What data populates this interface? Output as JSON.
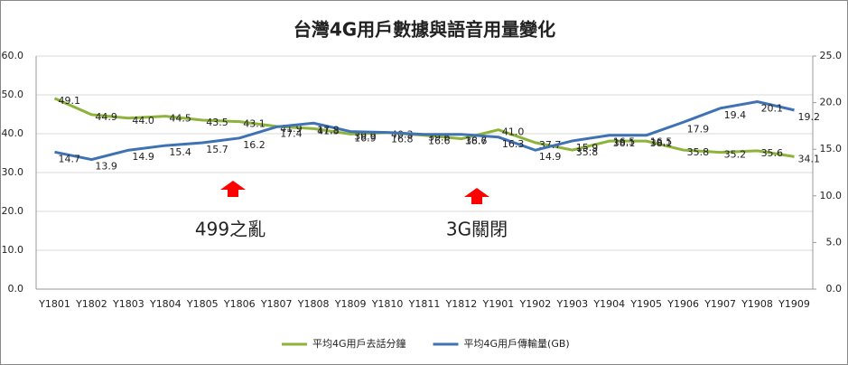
{
  "chart_data": {
    "type": "line",
    "title": "台灣4G用戶數據與語音用量變化",
    "categories": [
      "Y1801",
      "Y1802",
      "Y1803",
      "Y1804",
      "Y1805",
      "Y1806",
      "Y1807",
      "Y1808",
      "Y1809",
      "Y1810",
      "Y1811",
      "Y1812",
      "Y1901",
      "Y1902",
      "Y1903",
      "Y1904",
      "Y1905",
      "Y1906",
      "Y1907",
      "Y1908",
      "Y1909"
    ],
    "series": [
      {
        "name": "平均4G用戶去話分鐘",
        "color": "#8db33a",
        "values": [
          49.1,
          44.9,
          44.0,
          44.5,
          43.5,
          43.1,
          41.9,
          41.3,
          39.9,
          40.3,
          39.6,
          38.7,
          41.0,
          37.7,
          35.8,
          38.1,
          38.1,
          35.8,
          35.2,
          35.6,
          34.1
        ],
        "value_labels": [
          "49.1",
          "44.9",
          "44.0",
          "44.5",
          "43.5",
          "43.1",
          "41.9",
          "41.3",
          "39.9",
          "40.3",
          "39.6",
          "38.7",
          "41.0",
          "37.7",
          "35.8",
          "38.1",
          "38.1",
          "35.8",
          "35.2",
          "35.6",
          "34.1"
        ]
      },
      {
        "name": "平均4G用戶傳輸量(GB)",
        "color": "#3f72b5",
        "axis": "y2",
        "values": [
          14.7,
          13.9,
          14.9,
          15.4,
          15.7,
          16.2,
          17.4,
          17.8,
          16.9,
          16.8,
          16.6,
          16.6,
          16.3,
          14.9,
          15.9,
          16.5,
          16.5,
          17.9,
          19.4,
          20.1,
          19.2
        ],
        "value_labels": [
          "14.7",
          "13.9",
          "14.9",
          "15.4",
          "15.7",
          "16.2",
          "17.4",
          "17.8",
          "16.9",
          "16.8",
          "16.6",
          "16.6",
          "16.3",
          "14.9",
          "15.9",
          "16.5",
          "16.5",
          "17.9",
          "19.4",
          "20.1",
          "19.2"
        ]
      }
    ],
    "ylim": [
      0,
      60
    ],
    "yticks": [
      {
        "value": 0,
        "label": "0.0"
      },
      {
        "value": 10,
        "label": "10.0"
      },
      {
        "value": 20,
        "label": "20.0"
      },
      {
        "value": 30,
        "label": "30.0"
      },
      {
        "value": 40,
        "label": "40.0"
      },
      {
        "value": 50,
        "label": "50.0"
      },
      {
        "value": 60,
        "label": "60.0"
      }
    ],
    "y2lim": [
      0,
      25
    ],
    "y2ticks": [
      {
        "value": 0,
        "label": "0.0"
      },
      {
        "value": 5,
        "label": "5.0"
      },
      {
        "value": 10,
        "label": "10.0"
      },
      {
        "value": 15,
        "label": "15.0"
      },
      {
        "value": 20,
        "label": "20.0"
      },
      {
        "value": 25,
        "label": "25.0"
      }
    ],
    "grid": true,
    "legend": "bottom",
    "annotations": [
      "499之亂",
      "3G關閉"
    ]
  }
}
